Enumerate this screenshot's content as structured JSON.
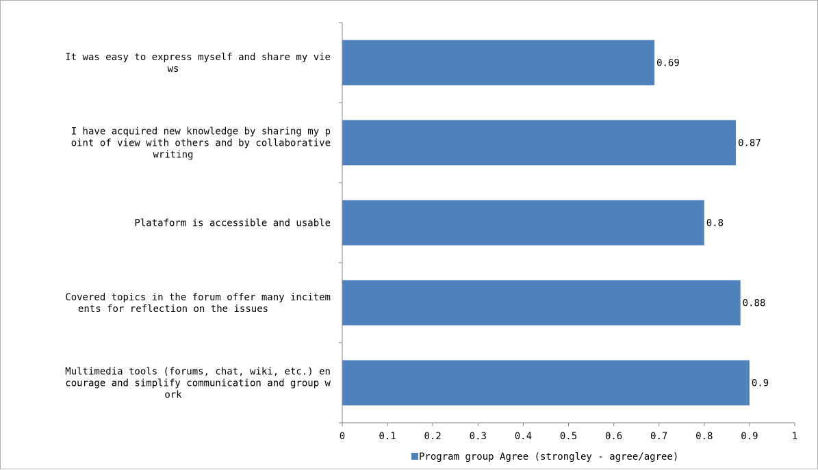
{
  "chart_data": {
    "type": "bar",
    "orientation": "horizontal",
    "categories": [
      [
        "It was easy to express myself and share my vie",
        "ws"
      ],
      [
        "I have acquired new knowledge by sharing my p",
        "oint of view with others and by collaborative",
        "writing"
      ],
      [
        "Plataform is accessible and usable"
      ],
      [
        "Covered topics in the forum offer many incitem",
        "ents for reflection on the issues"
      ],
      [
        "Multimedia tools (forums, chat, wiki, etc.) en",
        "courage and simplify communication and group w",
        "ork"
      ]
    ],
    "series": [
      {
        "name": "Program group Agree (strongley - agree/agree)",
        "values": [
          0.69,
          0.87,
          0.8,
          0.88,
          0.9
        ],
        "labels": [
          "0.69",
          "0.87",
          "0.8",
          "0.88",
          "0.9"
        ],
        "color": "#4f81bd"
      }
    ],
    "xlim": [
      0,
      1
    ],
    "xticks": [
      0,
      0.1,
      0.2,
      0.3,
      0.4,
      0.5,
      0.6,
      0.7,
      0.8,
      0.9,
      1
    ],
    "xtick_labels": [
      "0",
      "0.1",
      "0.2",
      "0.3",
      "0.4",
      "0.5",
      "0.6",
      "0.7",
      "0.8",
      "0.9",
      "1"
    ],
    "grid": false,
    "legend_position": "bottom",
    "title": "",
    "xlabel": "",
    "ylabel": ""
  }
}
